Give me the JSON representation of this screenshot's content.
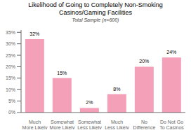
{
  "chart_data": {
    "type": "bar",
    "title": "Likelihood of Going to Completely Non-Smoking\nCasinos/Gaming Facilities",
    "subtitle": "Total Sample (n=600)",
    "categories": [
      "Much\nMore Likely",
      "Somewhat\nMore Likely",
      "Somewhat\nLess Likely",
      "Much\nLess Likely",
      "No\nDifference",
      "Do Not Go\nTo Casinos"
    ],
    "values": [
      32,
      15,
      2,
      8,
      20,
      24
    ],
    "value_labels": [
      "32%",
      "15%",
      "2%",
      "8%",
      "20%",
      "24%"
    ],
    "data_labels": true,
    "color": "#F4A0B8",
    "ylim": [
      0,
      36
    ],
    "yticks": [
      {
        "value": 0,
        "label": "0%"
      },
      {
        "value": 5,
        "label": "5%"
      },
      {
        "value": 10,
        "label": "10%"
      },
      {
        "value": 15,
        "label": "15%"
      },
      {
        "value": 20,
        "label": "20%"
      },
      {
        "value": 25,
        "label": "25%"
      },
      {
        "value": 30,
        "label": "30%"
      },
      {
        "value": 35,
        "label": "35%"
      }
    ],
    "grid": false
  }
}
